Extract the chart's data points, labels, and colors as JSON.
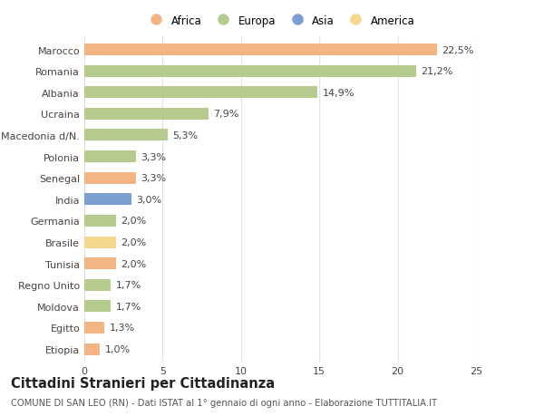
{
  "countries": [
    "Marocco",
    "Romania",
    "Albania",
    "Ucraina",
    "Macedonia d/N.",
    "Polonia",
    "Senegal",
    "India",
    "Germania",
    "Brasile",
    "Tunisia",
    "Regno Unito",
    "Moldova",
    "Egitto",
    "Etiopia"
  ],
  "values": [
    22.5,
    21.2,
    14.9,
    7.9,
    5.3,
    3.3,
    3.3,
    3.0,
    2.0,
    2.0,
    2.0,
    1.7,
    1.7,
    1.3,
    1.0
  ],
  "labels": [
    "22,5%",
    "21,2%",
    "14,9%",
    "7,9%",
    "5,3%",
    "3,3%",
    "3,3%",
    "3,0%",
    "2,0%",
    "2,0%",
    "2,0%",
    "1,7%",
    "1,7%",
    "1,3%",
    "1,0%"
  ],
  "continents": [
    "Africa",
    "Europa",
    "Europa",
    "Europa",
    "Europa",
    "Europa",
    "Africa",
    "Asia",
    "Europa",
    "America",
    "Africa",
    "Europa",
    "Europa",
    "Africa",
    "Africa"
  ],
  "colors": {
    "Africa": "#F5B483",
    "Europa": "#B5CC8E",
    "Asia": "#7B9FD0",
    "America": "#F5D78E"
  },
  "legend_order": [
    "Africa",
    "Europa",
    "Asia",
    "America"
  ],
  "bg_color": "#ffffff",
  "grid_color": "#e0e0e0",
  "title": "Cittadini Stranieri per Cittadinanza",
  "subtitle": "COMUNE DI SAN LEO (RN) - Dati ISTAT al 1° gennaio di ogni anno - Elaborazione TUTTITALIA.IT",
  "xlim": [
    0,
    25
  ],
  "xticks": [
    0,
    5,
    10,
    15,
    20,
    25
  ],
  "bar_height": 0.55,
  "label_fontsize": 8,
  "tick_fontsize": 8,
  "title_fontsize": 10.5,
  "subtitle_fontsize": 7.2,
  "legend_fontsize": 8.5
}
